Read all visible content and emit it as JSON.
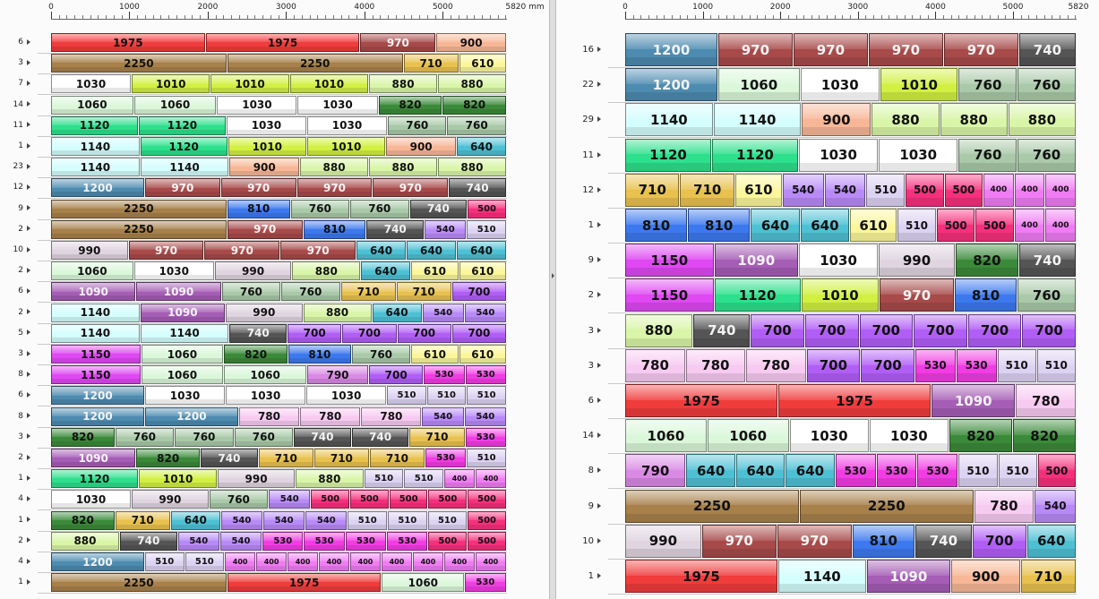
{
  "left": {
    "ruler": {
      "ticks": [
        "0",
        "1000",
        "2000",
        "3000",
        "4000",
        "5000"
      ],
      "end_label": "5820 mm"
    },
    "rows": [
      {
        "label": "6",
        "pieces": [
          1975,
          1975,
          970,
          900
        ]
      },
      {
        "label": "3",
        "pieces": [
          2250,
          2250,
          710,
          610
        ]
      },
      {
        "label": "7",
        "pieces": [
          1030,
          1010,
          1010,
          1010,
          880,
          880
        ]
      },
      {
        "label": "14",
        "pieces": [
          1060,
          1060,
          1030,
          1030,
          820,
          820
        ]
      },
      {
        "label": "11",
        "pieces": [
          1120,
          1120,
          1030,
          1030,
          760,
          760
        ]
      },
      {
        "label": "1",
        "pieces": [
          1140,
          1120,
          1010,
          1010,
          900,
          640
        ]
      },
      {
        "label": "23",
        "pieces": [
          1140,
          1140,
          900,
          880,
          880,
          880
        ]
      },
      {
        "label": "12",
        "pieces": [
          1200,
          970,
          970,
          970,
          970,
          740
        ]
      },
      {
        "label": "9",
        "pieces": [
          2250,
          810,
          760,
          760,
          740,
          500
        ]
      },
      {
        "label": "2",
        "pieces": [
          2250,
          970,
          810,
          740,
          540,
          510
        ]
      },
      {
        "label": "10",
        "pieces": [
          990,
          970,
          970,
          970,
          640,
          640,
          640
        ]
      },
      {
        "label": "2",
        "pieces": [
          1060,
          1030,
          990,
          880,
          640,
          610,
          610
        ]
      },
      {
        "label": "6",
        "pieces": [
          1090,
          1090,
          760,
          760,
          710,
          710,
          700
        ]
      },
      {
        "label": "2",
        "pieces": [
          1140,
          1090,
          990,
          880,
          640,
          540,
          540
        ]
      },
      {
        "label": "5",
        "pieces": [
          1140,
          1140,
          740,
          700,
          700,
          700,
          700
        ]
      },
      {
        "label": "3",
        "pieces": [
          1150,
          1060,
          820,
          810,
          760,
          610,
          610
        ]
      },
      {
        "label": "8",
        "pieces": [
          1150,
          1060,
          1060,
          790,
          700,
          530,
          530
        ]
      },
      {
        "label": "6",
        "pieces": [
          1200,
          1030,
          1030,
          1030,
          510,
          510,
          510
        ]
      },
      {
        "label": "8",
        "pieces": [
          1200,
          1200,
          780,
          780,
          780,
          540,
          540
        ]
      },
      {
        "label": "3",
        "pieces": [
          820,
          760,
          760,
          760,
          740,
          740,
          710,
          530
        ]
      },
      {
        "label": "2",
        "pieces": [
          1090,
          820,
          740,
          710,
          710,
          710,
          530,
          510
        ]
      },
      {
        "label": "1",
        "pieces": [
          1120,
          1010,
          990,
          880,
          510,
          510,
          400,
          400
        ]
      },
      {
        "label": "4",
        "pieces": [
          1030,
          990,
          760,
          540,
          500,
          500,
          500,
          500,
          500
        ]
      },
      {
        "label": "1",
        "pieces": [
          820,
          710,
          640,
          540,
          540,
          540,
          510,
          510,
          510,
          500
        ]
      },
      {
        "label": "2",
        "pieces": [
          880,
          740,
          540,
          540,
          530,
          530,
          530,
          530,
          500,
          500
        ]
      },
      {
        "label": "4",
        "pieces": [
          1200,
          510,
          510,
          400,
          400,
          400,
          400,
          400,
          400,
          400,
          400,
          400
        ]
      },
      {
        "label": "1",
        "pieces": [
          2250,
          1975,
          1060,
          530
        ]
      }
    ]
  },
  "right": {
    "ruler": {
      "ticks": [
        "0",
        "1000",
        "2000",
        "3000",
        "4000",
        "5000"
      ],
      "end_label": "5820"
    },
    "rows": [
      {
        "label": "16",
        "pieces": [
          1200,
          970,
          970,
          970,
          970,
          740
        ]
      },
      {
        "label": "22",
        "pieces": [
          1200,
          1060,
          1030,
          1010,
          760,
          760
        ]
      },
      {
        "label": "29",
        "pieces": [
          1140,
          1140,
          900,
          880,
          880,
          880
        ]
      },
      {
        "label": "11",
        "pieces": [
          1120,
          1120,
          1030,
          1030,
          760,
          760
        ]
      },
      {
        "label": "12",
        "pieces": [
          710,
          710,
          610,
          540,
          540,
          510,
          500,
          500,
          400,
          400,
          400
        ]
      },
      {
        "label": "1",
        "pieces": [
          810,
          810,
          640,
          640,
          610,
          510,
          500,
          500,
          400,
          400
        ]
      },
      {
        "label": "9",
        "pieces": [
          1150,
          1090,
          1030,
          990,
          820,
          740
        ]
      },
      {
        "label": "2",
        "pieces": [
          1150,
          1120,
          1010,
          970,
          810,
          760
        ]
      },
      {
        "label": "3",
        "pieces": [
          880,
          740,
          700,
          700,
          700,
          700,
          700,
          700
        ]
      },
      {
        "label": "3",
        "pieces": [
          780,
          780,
          780,
          700,
          700,
          530,
          530,
          510,
          510
        ]
      },
      {
        "label": "6",
        "pieces": [
          1975,
          1975,
          1090,
          780
        ]
      },
      {
        "label": "14",
        "pieces": [
          1060,
          1060,
          1030,
          1030,
          820,
          820
        ]
      },
      {
        "label": "8",
        "pieces": [
          790,
          640,
          640,
          640,
          530,
          530,
          530,
          510,
          510,
          500
        ]
      },
      {
        "label": "9",
        "pieces": [
          2250,
          2250,
          780,
          540
        ]
      },
      {
        "label": "10",
        "pieces": [
          990,
          970,
          970,
          810,
          740,
          700,
          640
        ]
      },
      {
        "label": "1",
        "pieces": [
          1975,
          1140,
          1090,
          900,
          710
        ]
      }
    ]
  },
  "colors": {
    "400": "#f07cf3",
    "500": "#f5307c",
    "510": "#dcd2f2",
    "530": "#f23ce4",
    "540": "#b88af7",
    "610": "#fbf69a",
    "640": "#4ec0d4",
    "700": "#b15ef6",
    "710": "#e8c14e",
    "740": "#555555",
    "760": "#a9c9a8",
    "780": "#f7caf1",
    "790": "#d98ae4",
    "810": "#3d79ee",
    "820": "#3b8a3a",
    "880": "#d9f5a8",
    "900": "#f7b797",
    "970": "#a84a4a",
    "990": "#dfd4df",
    "1010": "#d2f042",
    "1030": "#ffffff",
    "1060": "#daf7da",
    "1090": "#a55db5",
    "1120": "#2de08c",
    "1140": "#d4fdfd",
    "1150": "#df48f3",
    "1200": "#4d8bb0",
    "1975": "#f03c3c",
    "2250": "#a7804a"
  },
  "light_text_lengths": [
    "1200",
    "1090",
    "970",
    "740"
  ]
}
